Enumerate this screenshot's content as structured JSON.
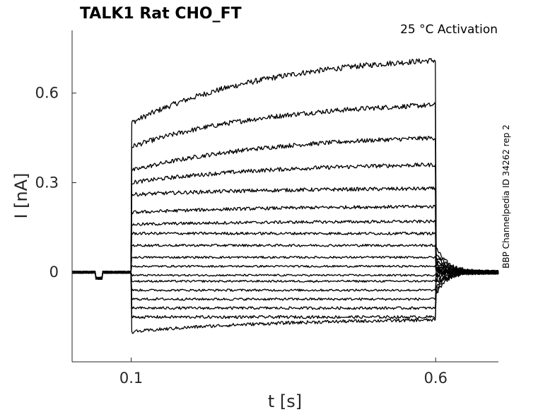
{
  "chart_data": {
    "type": "line",
    "title": "TALK1  Rat  CHO_FT",
    "condition_label": "25 °C  Activation",
    "side_label": "BBP Channelpedia ID 34262 rep 2",
    "xlabel": "t [s]",
    "ylabel": "I [nA]",
    "xlim": [
      0.003,
      0.703
    ],
    "ylim": [
      -0.3,
      0.81
    ],
    "x_ticks": [
      {
        "value": 0.1,
        "label": "0.1"
      },
      {
        "value": 0.6,
        "label": "0.6"
      }
    ],
    "y_ticks": [
      {
        "value": 0,
        "label": "0"
      },
      {
        "value": 0.3,
        "label": "0.3"
      },
      {
        "value": 0.6,
        "label": "0.6"
      }
    ],
    "grid": false,
    "legend": "none",
    "step_start": 0.1,
    "step_end": 0.6,
    "series": [
      {
        "onset": 0.5,
        "end": 0.71
      },
      {
        "onset": 0.42,
        "end": 0.56
      },
      {
        "onset": 0.34,
        "end": 0.45
      },
      {
        "onset": 0.3,
        "end": 0.36
      },
      {
        "onset": 0.26,
        "end": 0.28
      },
      {
        "onset": 0.2,
        "end": 0.22
      },
      {
        "onset": 0.16,
        "end": 0.17
      },
      {
        "onset": 0.13,
        "end": 0.13
      },
      {
        "onset": 0.09,
        "end": 0.09
      },
      {
        "onset": 0.05,
        "end": 0.05
      },
      {
        "onset": 0.02,
        "end": 0.02
      },
      {
        "onset": -0.01,
        "end": -0.01
      },
      {
        "onset": -0.03,
        "end": -0.03
      },
      {
        "onset": -0.06,
        "end": -0.06
      },
      {
        "onset": -0.09,
        "end": -0.09
      },
      {
        "onset": -0.12,
        "end": -0.12
      },
      {
        "onset": -0.15,
        "end": -0.15
      },
      {
        "onset": -0.2,
        "end": -0.16
      }
    ]
  }
}
